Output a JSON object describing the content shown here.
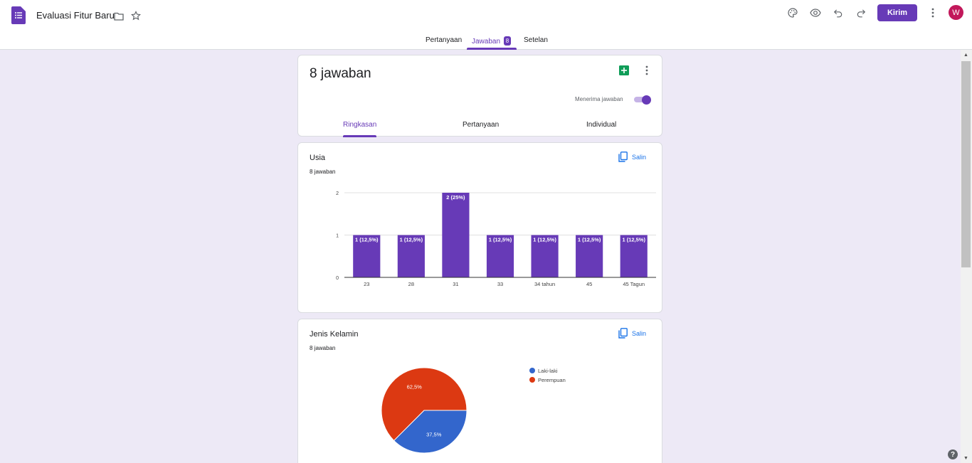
{
  "header": {
    "title": "Evaluasi Fitur Baru",
    "send_label": "Kirim",
    "avatar_initial": "W",
    "icons": [
      "forms-logo-icon",
      "folder-icon",
      "star-icon",
      "palette-icon",
      "eye-icon",
      "undo-icon",
      "redo-icon",
      "more-vert-icon"
    ]
  },
  "tabs": {
    "questions": "Pertanyaan",
    "responses": "Jawaban",
    "responses_badge": "8",
    "settings": "Setelan"
  },
  "summary": {
    "count_label": "8 jawaban",
    "accepting_label": "Menerima jawaban",
    "accepting": true,
    "subtabs": [
      "Ringkasan",
      "Pertanyaan",
      "Individual"
    ]
  },
  "questions": [
    {
      "title": "Usia",
      "count_label": "8 jawaban",
      "copy_label": "Salin"
    },
    {
      "title": "Jenis Kelamin",
      "count_label": "8 jawaban",
      "copy_label": "Salin"
    }
  ],
  "colors": {
    "accent": "#673ab7",
    "bar": "#673ab7",
    "pie_male": "#3366cc",
    "pie_female": "#dc3912"
  },
  "chart_data": [
    {
      "type": "bar",
      "categories": [
        "23",
        "28",
        "31",
        "33",
        "34 tahun",
        "45",
        "45 Tagun"
      ],
      "values": [
        1,
        1,
        2,
        1,
        1,
        1,
        1
      ],
      "data_labels": [
        "1 (12,5%)",
        "1 (12,5%)",
        "2 (25%)",
        "1 (12,5%)",
        "1 (12,5%)",
        "1 (12,5%)",
        "1 (12,5%)"
      ],
      "yticks": [
        "0",
        "1",
        "2"
      ],
      "ylim": [
        0,
        2
      ],
      "grid": true
    },
    {
      "type": "pie",
      "labels": [
        "Laki-laki",
        "Perempuan"
      ],
      "values": [
        37.5,
        62.5
      ],
      "data_labels": [
        "37,5%",
        "62,5%"
      ],
      "legend": "right"
    }
  ]
}
